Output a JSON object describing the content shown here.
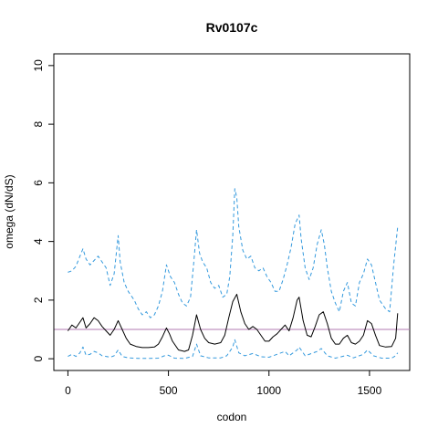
{
  "chart_data": {
    "type": "line",
    "title": "Rv0107c",
    "xlabel": "codon",
    "ylabel": "omega (dN/dS)",
    "xlim": [
      -70,
      1700
    ],
    "ylim": [
      -0.4,
      10.4
    ],
    "x_ticks": [
      0,
      500,
      1000,
      1500
    ],
    "y_ticks": [
      0,
      2,
      4,
      6,
      8,
      10
    ],
    "grid": false,
    "reference_line": {
      "y": 1,
      "color": "#b07ab0"
    },
    "series": [
      {
        "role": "upper-bound",
        "style": "dashed",
        "color": "#3399dd",
        "points": [
          [
            0,
            2.95
          ],
          [
            20,
            3.0
          ],
          [
            40,
            3.15
          ],
          [
            60,
            3.5
          ],
          [
            75,
            3.75
          ],
          [
            90,
            3.4
          ],
          [
            110,
            3.2
          ],
          [
            130,
            3.35
          ],
          [
            150,
            3.5
          ],
          [
            170,
            3.3
          ],
          [
            190,
            3.1
          ],
          [
            210,
            2.5
          ],
          [
            230,
            2.9
          ],
          [
            250,
            4.2
          ],
          [
            260,
            3.3
          ],
          [
            280,
            2.6
          ],
          [
            300,
            2.3
          ],
          [
            330,
            2.0
          ],
          [
            350,
            1.7
          ],
          [
            370,
            1.5
          ],
          [
            390,
            1.6
          ],
          [
            410,
            1.4
          ],
          [
            430,
            1.5
          ],
          [
            450,
            1.8
          ],
          [
            470,
            2.3
          ],
          [
            490,
            3.2
          ],
          [
            510,
            2.8
          ],
          [
            530,
            2.6
          ],
          [
            550,
            2.2
          ],
          [
            570,
            1.9
          ],
          [
            590,
            1.8
          ],
          [
            610,
            2.1
          ],
          [
            625,
            3.2
          ],
          [
            640,
            4.4
          ],
          [
            655,
            3.6
          ],
          [
            670,
            3.3
          ],
          [
            690,
            3.1
          ],
          [
            710,
            2.6
          ],
          [
            730,
            2.4
          ],
          [
            750,
            2.5
          ],
          [
            770,
            2.1
          ],
          [
            790,
            2.2
          ],
          [
            805,
            2.8
          ],
          [
            820,
            4.2
          ],
          [
            830,
            5.8
          ],
          [
            840,
            5.5
          ],
          [
            850,
            4.5
          ],
          [
            870,
            3.7
          ],
          [
            890,
            3.4
          ],
          [
            910,
            3.5
          ],
          [
            930,
            3.1
          ],
          [
            950,
            3.0
          ],
          [
            970,
            3.1
          ],
          [
            990,
            2.8
          ],
          [
            1010,
            2.6
          ],
          [
            1030,
            2.3
          ],
          [
            1050,
            2.3
          ],
          [
            1070,
            2.7
          ],
          [
            1090,
            3.2
          ],
          [
            1110,
            3.8
          ],
          [
            1130,
            4.6
          ],
          [
            1150,
            4.9
          ],
          [
            1160,
            4.1
          ],
          [
            1180,
            3.1
          ],
          [
            1200,
            2.7
          ],
          [
            1220,
            3.1
          ],
          [
            1240,
            3.9
          ],
          [
            1260,
            4.4
          ],
          [
            1275,
            3.9
          ],
          [
            1290,
            3.1
          ],
          [
            1310,
            2.3
          ],
          [
            1330,
            1.9
          ],
          [
            1350,
            1.6
          ],
          [
            1370,
            2.3
          ],
          [
            1390,
            2.6
          ],
          [
            1410,
            1.9
          ],
          [
            1430,
            1.8
          ],
          [
            1450,
            2.6
          ],
          [
            1470,
            2.9
          ],
          [
            1490,
            3.4
          ],
          [
            1510,
            3.2
          ],
          [
            1530,
            2.6
          ],
          [
            1550,
            2.0
          ],
          [
            1580,
            1.7
          ],
          [
            1600,
            1.6
          ],
          [
            1620,
            3.2
          ],
          [
            1640,
            4.5
          ]
        ]
      },
      {
        "role": "estimate",
        "style": "solid",
        "color": "#000000",
        "points": [
          [
            0,
            0.95
          ],
          [
            20,
            1.15
          ],
          [
            40,
            1.05
          ],
          [
            60,
            1.25
          ],
          [
            75,
            1.4
          ],
          [
            90,
            1.05
          ],
          [
            110,
            1.2
          ],
          [
            130,
            1.4
          ],
          [
            150,
            1.3
          ],
          [
            170,
            1.1
          ],
          [
            190,
            0.95
          ],
          [
            210,
            0.8
          ],
          [
            230,
            1.0
          ],
          [
            250,
            1.3
          ],
          [
            270,
            1.0
          ],
          [
            290,
            0.7
          ],
          [
            310,
            0.5
          ],
          [
            340,
            0.42
          ],
          [
            370,
            0.38
          ],
          [
            400,
            0.38
          ],
          [
            430,
            0.4
          ],
          [
            450,
            0.5
          ],
          [
            470,
            0.75
          ],
          [
            490,
            1.05
          ],
          [
            505,
            0.85
          ],
          [
            520,
            0.6
          ],
          [
            550,
            0.3
          ],
          [
            580,
            0.25
          ],
          [
            600,
            0.3
          ],
          [
            620,
            0.8
          ],
          [
            640,
            1.5
          ],
          [
            660,
            1.0
          ],
          [
            680,
            0.7
          ],
          [
            700,
            0.55
          ],
          [
            730,
            0.5
          ],
          [
            760,
            0.55
          ],
          [
            780,
            0.8
          ],
          [
            800,
            1.4
          ],
          [
            820,
            1.95
          ],
          [
            840,
            2.2
          ],
          [
            860,
            1.6
          ],
          [
            880,
            1.2
          ],
          [
            900,
            1.0
          ],
          [
            920,
            1.1
          ],
          [
            940,
            1.0
          ],
          [
            960,
            0.8
          ],
          [
            980,
            0.6
          ],
          [
            1000,
            0.6
          ],
          [
            1020,
            0.75
          ],
          [
            1040,
            0.85
          ],
          [
            1060,
            1.0
          ],
          [
            1080,
            1.15
          ],
          [
            1100,
            0.95
          ],
          [
            1120,
            1.4
          ],
          [
            1140,
            2.0
          ],
          [
            1150,
            2.1
          ],
          [
            1170,
            1.3
          ],
          [
            1190,
            0.8
          ],
          [
            1210,
            0.75
          ],
          [
            1230,
            1.1
          ],
          [
            1250,
            1.5
          ],
          [
            1270,
            1.6
          ],
          [
            1290,
            1.2
          ],
          [
            1310,
            0.7
          ],
          [
            1330,
            0.5
          ],
          [
            1350,
            0.5
          ],
          [
            1370,
            0.7
          ],
          [
            1390,
            0.8
          ],
          [
            1410,
            0.55
          ],
          [
            1430,
            0.5
          ],
          [
            1450,
            0.6
          ],
          [
            1470,
            0.8
          ],
          [
            1490,
            1.3
          ],
          [
            1510,
            1.2
          ],
          [
            1530,
            0.8
          ],
          [
            1550,
            0.45
          ],
          [
            1580,
            0.4
          ],
          [
            1610,
            0.42
          ],
          [
            1630,
            0.7
          ],
          [
            1640,
            1.55
          ]
        ]
      },
      {
        "role": "lower-bound",
        "style": "dashed",
        "color": "#3399dd",
        "points": [
          [
            0,
            0.08
          ],
          [
            20,
            0.15
          ],
          [
            40,
            0.08
          ],
          [
            60,
            0.2
          ],
          [
            75,
            0.4
          ],
          [
            90,
            0.12
          ],
          [
            110,
            0.15
          ],
          [
            130,
            0.25
          ],
          [
            150,
            0.2
          ],
          [
            170,
            0.1
          ],
          [
            190,
            0.08
          ],
          [
            210,
            0.05
          ],
          [
            230,
            0.1
          ],
          [
            250,
            0.3
          ],
          [
            270,
            0.08
          ],
          [
            300,
            0.03
          ],
          [
            350,
            0.01
          ],
          [
            400,
            0.01
          ],
          [
            450,
            0.02
          ],
          [
            480,
            0.1
          ],
          [
            500,
            0.12
          ],
          [
            530,
            0.02
          ],
          [
            580,
            0.01
          ],
          [
            620,
            0.08
          ],
          [
            640,
            0.5
          ],
          [
            660,
            0.1
          ],
          [
            700,
            0.03
          ],
          [
            760,
            0.03
          ],
          [
            790,
            0.1
          ],
          [
            820,
            0.4
          ],
          [
            830,
            0.65
          ],
          [
            850,
            0.2
          ],
          [
            880,
            0.1
          ],
          [
            920,
            0.18
          ],
          [
            960,
            0.07
          ],
          [
            1000,
            0.05
          ],
          [
            1060,
            0.2
          ],
          [
            1080,
            0.25
          ],
          [
            1100,
            0.1
          ],
          [
            1140,
            0.3
          ],
          [
            1150,
            0.4
          ],
          [
            1180,
            0.1
          ],
          [
            1240,
            0.25
          ],
          [
            1260,
            0.35
          ],
          [
            1290,
            0.1
          ],
          [
            1330,
            0.02
          ],
          [
            1390,
            0.12
          ],
          [
            1420,
            0.03
          ],
          [
            1470,
            0.15
          ],
          [
            1490,
            0.3
          ],
          [
            1520,
            0.1
          ],
          [
            1560,
            0.02
          ],
          [
            1610,
            0.02
          ],
          [
            1630,
            0.1
          ],
          [
            1640,
            0.2
          ]
        ]
      }
    ]
  }
}
